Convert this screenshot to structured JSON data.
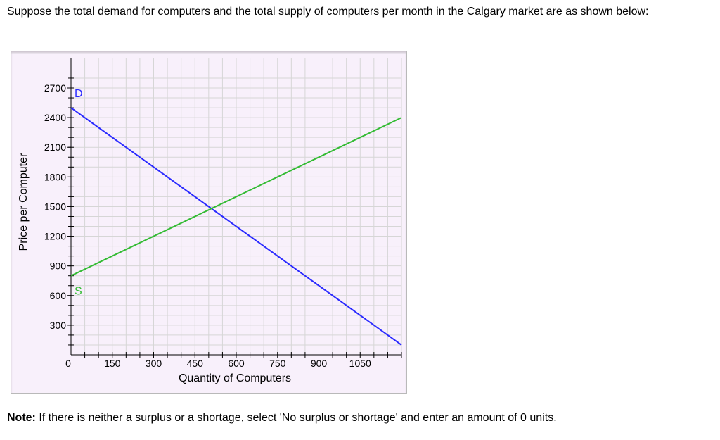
{
  "question": {
    "text": "Suppose the total demand for computers and the total supply of computers per month in the Calgary market are as shown below:"
  },
  "note": {
    "label": "Note:",
    "text": " If there is neither a surplus or a shortage, select 'No surplus or shortage' and enter an amount of 0 units."
  },
  "chart_data": {
    "type": "line",
    "title": "",
    "xlabel": "Quantity of Computers",
    "ylabel": "Price per Computer",
    "xlim": [
      0,
      1200
    ],
    "ylim": [
      0,
      2850
    ],
    "x_ticks": [
      0,
      150,
      300,
      450,
      600,
      750,
      900,
      1050
    ],
    "y_ticks": [
      300,
      600,
      900,
      1200,
      1500,
      1800,
      2100,
      2400,
      2700
    ],
    "grid": true,
    "series": [
      {
        "name": "D",
        "color": "#2a2aff",
        "x": [
          0,
          1200
        ],
        "y": [
          2500,
          100
        ]
      },
      {
        "name": "S",
        "color": "#33bb33",
        "x": [
          0,
          1200
        ],
        "y": [
          800,
          2400
        ]
      }
    ]
  }
}
